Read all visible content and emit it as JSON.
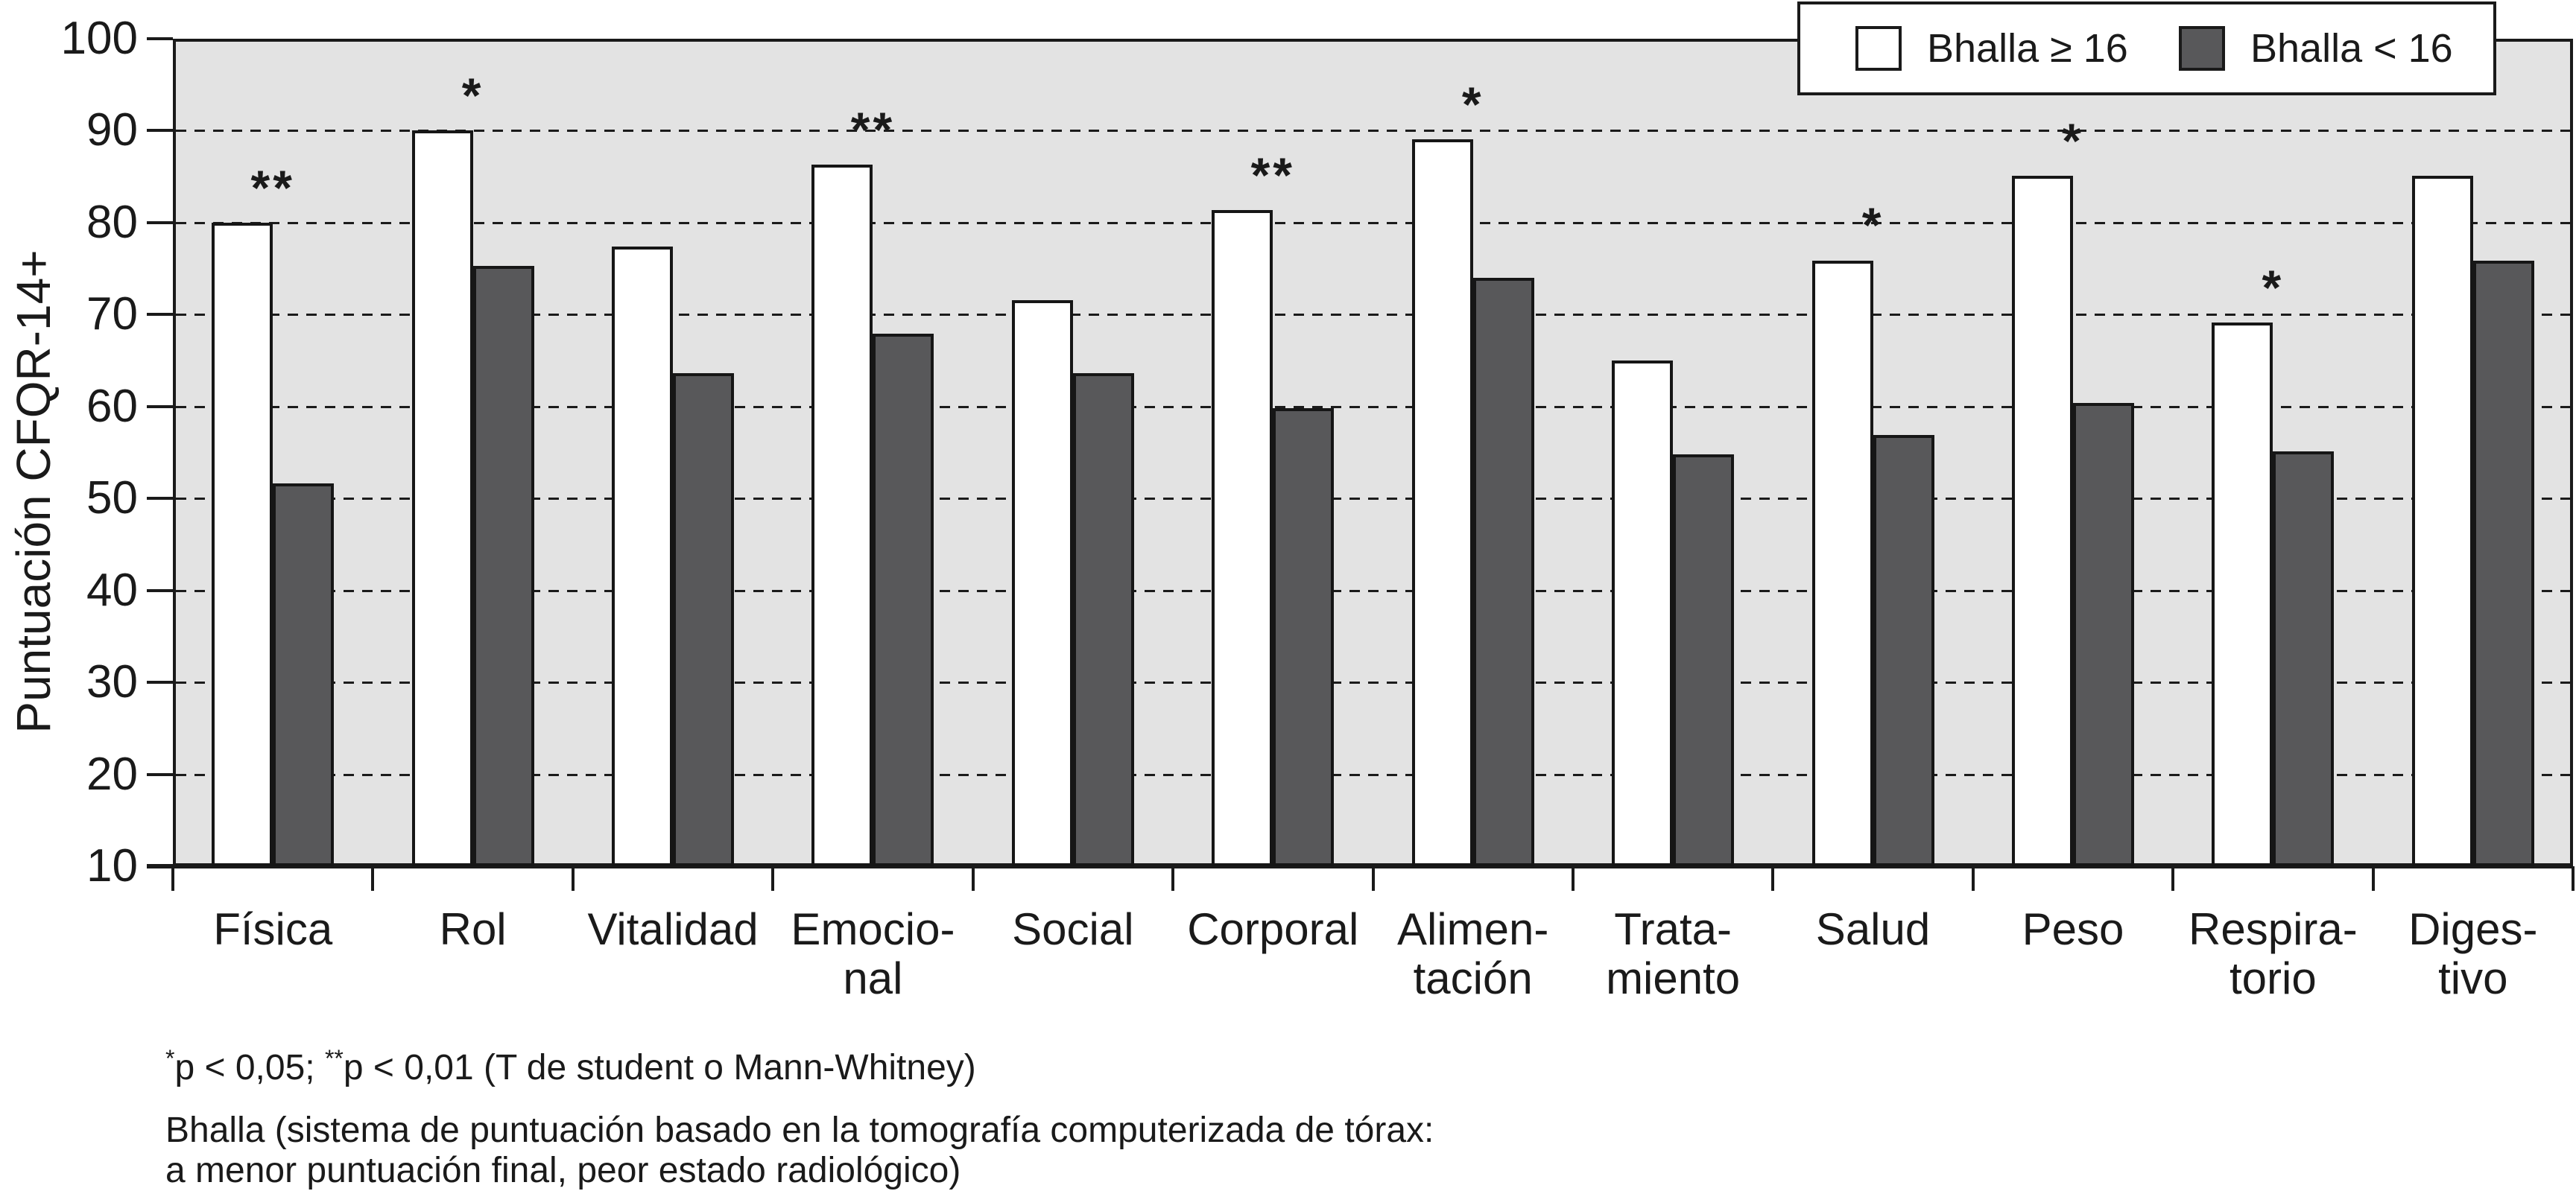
{
  "chart_data": {
    "type": "bar",
    "title": "",
    "xlabel": "",
    "ylabel": "Puntuación CFQR-14+",
    "ylim": [
      10,
      100
    ],
    "grid": "horizontal-dashed",
    "legend_position": "top-right",
    "categories": [
      "Física",
      "Rol",
      "Vitalidad",
      "Emocional",
      "Social",
      "Corporal",
      "Alimentación",
      "Tratamiento",
      "Salud",
      "Peso",
      "Respiratorio",
      "Digestivo"
    ],
    "category_label_lines": [
      [
        "Física"
      ],
      [
        "Rol"
      ],
      [
        "Vitalidad"
      ],
      [
        "Emocio-",
        "nal"
      ],
      [
        "Social"
      ],
      [
        "Corporal"
      ],
      [
        "Alimen-",
        "tación"
      ],
      [
        "Trata-",
        "miento"
      ],
      [
        "Salud"
      ],
      [
        "Peso"
      ],
      [
        "Respira-",
        "torio"
      ],
      [
        "Diges-",
        "tivo"
      ]
    ],
    "series": [
      {
        "name": "Bhalla ≥ 16",
        "color": "#ffffff",
        "values": [
          80.0,
          90.0,
          77.4,
          86.3,
          71.6,
          81.4,
          89.1,
          65.0,
          75.9,
          85.1,
          69.1,
          85.1
        ]
      },
      {
        "name": "Bhalla < 16",
        "color": "#58585a",
        "values": [
          51.6,
          75.3,
          63.6,
          67.9,
          63.6,
          59.8,
          74.0,
          54.8,
          56.9,
          60.4,
          55.1,
          75.9
        ]
      }
    ],
    "significance_markers": [
      "**",
      "*",
      "",
      "**",
      "",
      "**",
      "*",
      "",
      "*",
      "*",
      "*",
      ""
    ],
    "y_ticks": [
      "10",
      "20",
      "30",
      "40",
      "50",
      "60",
      "70",
      "80",
      "90",
      "100"
    ]
  },
  "y_axis": {
    "title": "Puntuación CFQR-14+"
  },
  "legend": {
    "items": [
      {
        "label": "Bhalla ≥ 16",
        "swatch_color": "#ffffff"
      },
      {
        "label": "Bhalla < 16",
        "swatch_color": "#58585a"
      }
    ]
  },
  "footnotes": {
    "line1_sup1": "*",
    "line1_part1": "p < 0,05; ",
    "line1_sup2": "**",
    "line1_part2": "p < 0,01 (T de student o Mann-Whitney)",
    "line2": "Bhalla (sistema de puntuación basado en la tomografía computerizada de tórax:",
    "line3": "a menor puntuación final, peor estado radiológico)"
  },
  "colors": {
    "plot_background": "#e3e3e3",
    "bar_light": "#ffffff",
    "bar_dark": "#58585a",
    "line": "#1a1a1a"
  }
}
